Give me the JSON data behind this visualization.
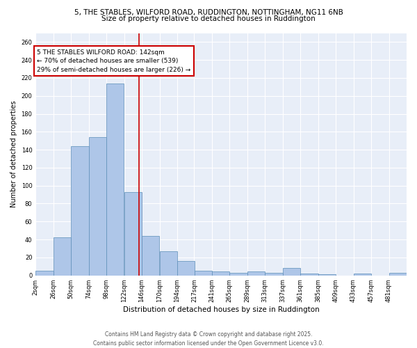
{
  "title_line1": "5, THE STABLES, WILFORD ROAD, RUDDINGTON, NOTTINGHAM, NG11 6NB",
  "title_line2": "Size of property relative to detached houses in Ruddington",
  "xlabel": "Distribution of detached houses by size in Ruddington",
  "ylabel": "Number of detached properties",
  "footer_line1": "Contains HM Land Registry data © Crown copyright and database right 2025.",
  "footer_line2": "Contains public sector information licensed under the Open Government Licence v3.0.",
  "annotation_title": "5 THE STABLES WILFORD ROAD: 142sqm",
  "annotation_line1": "← 70% of detached houses are smaller (539)",
  "annotation_line2": "29% of semi-detached houses are larger (226) →",
  "subject_value": 142,
  "categories": [
    "2sqm",
    "26sqm",
    "50sqm",
    "74sqm",
    "98sqm",
    "122sqm",
    "146sqm",
    "170sqm",
    "194sqm",
    "217sqm",
    "241sqm",
    "265sqm",
    "289sqm",
    "313sqm",
    "337sqm",
    "361sqm",
    "385sqm",
    "409sqm",
    "433sqm",
    "457sqm",
    "481sqm"
  ],
  "bin_edges": [
    2,
    26,
    50,
    74,
    98,
    122,
    146,
    170,
    194,
    217,
    241,
    265,
    289,
    313,
    337,
    361,
    385,
    409,
    433,
    457,
    481,
    505
  ],
  "values": [
    5,
    42,
    144,
    154,
    214,
    93,
    44,
    27,
    16,
    5,
    4,
    3,
    4,
    3,
    8,
    2,
    1,
    0,
    2,
    0,
    3
  ],
  "bar_color": "#aec6e8",
  "bar_edge_color": "#5b8db8",
  "subject_line_color": "#cc0000",
  "annotation_box_color": "#cc0000",
  "background_color": "#e8eef8",
  "ylim": [
    0,
    270
  ],
  "yticks": [
    0,
    20,
    40,
    60,
    80,
    100,
    120,
    140,
    160,
    180,
    200,
    220,
    240,
    260
  ],
  "title_fontsize": 7.5,
  "ylabel_fontsize": 7,
  "xlabel_fontsize": 7.5,
  "tick_fontsize": 6,
  "annotation_fontsize": 6.5,
  "footer_fontsize": 5.5
}
